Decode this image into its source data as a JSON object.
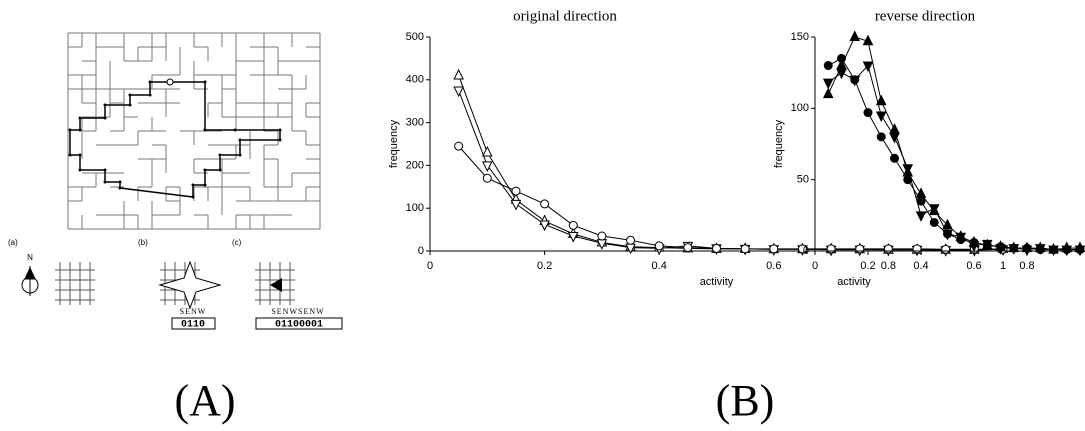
{
  "figure": {
    "panel_a_label": "(A)",
    "panel_b_label": "(B)",
    "sub_a": "(a)",
    "sub_b": "(b)",
    "sub_c": "(c)",
    "north": "N",
    "code_b_header": "SENW",
    "code_b": "0110",
    "code_c_header": "SENWSENW",
    "code_c": "01100001"
  },
  "chart_data": [
    {
      "type": "line",
      "title": "original direction",
      "xlabel": "activity",
      "ylabel": "frequency",
      "x": [
        0.05,
        0.1,
        0.15,
        0.2,
        0.25,
        0.3,
        0.35,
        0.4,
        0.45,
        0.5,
        0.55,
        0.6,
        0.65,
        0.7,
        0.75,
        0.8,
        0.85,
        0.9,
        0.95,
        1
      ],
      "xlim": [
        0,
        1
      ],
      "xticks": [
        0,
        0.2,
        0.4,
        0.6,
        0.8,
        1
      ],
      "ylim": [
        0,
        500
      ],
      "yticks": [
        0,
        100,
        200,
        300,
        400,
        500
      ],
      "series": [
        {
          "color": "#000",
          "marker": "triangle-up",
          "filled": false,
          "values": [
            410,
            230,
            120,
            70,
            40,
            20,
            10,
            8,
            6,
            5,
            5,
            4,
            4,
            4,
            4,
            3,
            3,
            3,
            3,
            5
          ]
        },
        {
          "color": "#000",
          "marker": "triangle-down",
          "filled": false,
          "values": [
            375,
            200,
            110,
            62,
            35,
            18,
            8,
            6,
            12,
            6,
            5,
            4,
            4,
            3,
            3,
            3,
            3,
            2,
            2,
            4
          ]
        },
        {
          "color": "#000",
          "marker": "circle",
          "filled": false,
          "values": [
            245,
            170,
            140,
            110,
            60,
            35,
            25,
            12,
            8,
            6,
            5,
            5,
            5,
            5,
            5,
            5,
            5,
            4,
            4,
            4
          ]
        }
      ]
    },
    {
      "type": "line",
      "title": "reverse direction",
      "xlabel": "activity",
      "ylabel": "frequency",
      "x": [
        0.05,
        0.1,
        0.15,
        0.2,
        0.25,
        0.3,
        0.35,
        0.4,
        0.45,
        0.5,
        0.55,
        0.6,
        0.65,
        0.7,
        0.75,
        0.8,
        0.85,
        0.9,
        0.95,
        1
      ],
      "xlim": [
        0,
        1
      ],
      "xticks": [
        0,
        0.2,
        0.4,
        0.6,
        0.8
      ],
      "ylim": [
        0,
        150
      ],
      "yticks": [
        0,
        50,
        100,
        150
      ],
      "series": [
        {
          "color": "#000",
          "marker": "circle",
          "filled": true,
          "values": [
            130,
            135,
            120,
            97,
            80,
            65,
            50,
            35,
            20,
            12,
            8,
            6,
            4,
            3,
            2,
            2,
            1,
            1,
            1,
            1
          ]
        },
        {
          "color": "#000",
          "marker": "triangle-up",
          "filled": true,
          "values": [
            110,
            130,
            150,
            147,
            105,
            85,
            55,
            40,
            28,
            18,
            10,
            6,
            4,
            3,
            2,
            2,
            2,
            1,
            2,
            2
          ]
        },
        {
          "color": "#000",
          "marker": "triangle-down",
          "filled": true,
          "values": [
            118,
            125,
            120,
            130,
            95,
            80,
            58,
            25,
            30,
            12,
            10,
            4,
            5,
            2,
            2,
            1,
            2,
            1,
            1,
            1
          ]
        }
      ]
    }
  ]
}
